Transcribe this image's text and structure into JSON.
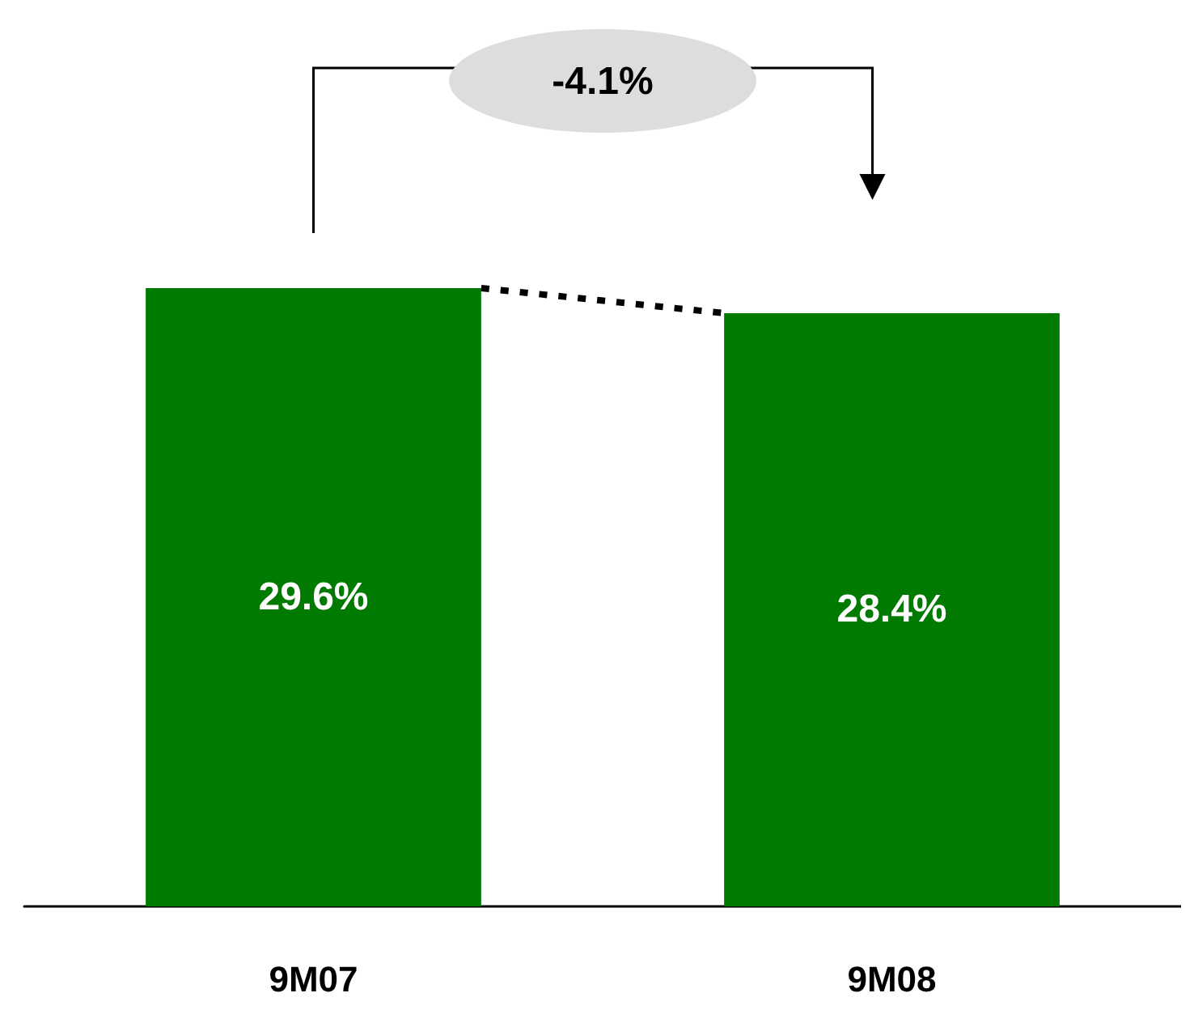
{
  "chart_data": {
    "type": "bar",
    "categories": [
      "9M07",
      "9M08"
    ],
    "values": [
      29.6,
      28.4
    ],
    "value_labels": [
      "29.6%",
      "28.4%"
    ],
    "color": "#007a00",
    "annotations": [
      "-4.1%"
    ]
  }
}
